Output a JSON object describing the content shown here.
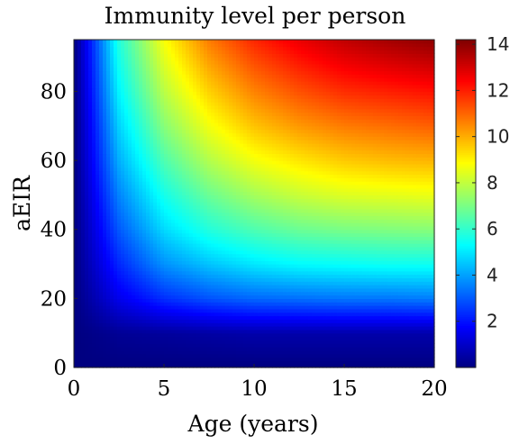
{
  "chart_data": {
    "type": "heatmap",
    "title": "Immunity level per person",
    "xlabel": "Age (years)",
    "ylabel": "aEIR",
    "xlim": [
      0,
      20
    ],
    "ylim": [
      0,
      95
    ],
    "x_ticks": [
      0,
      5,
      10,
      15,
      20
    ],
    "y_ticks": [
      0,
      20,
      40,
      60,
      80
    ],
    "colorbar": {
      "colormap": "jet",
      "range": [
        0,
        14.2
      ],
      "ticks": [
        2,
        4,
        6,
        8,
        10,
        12,
        14
      ]
    },
    "sampled_values": {
      "x": [
        0,
        2.5,
        5,
        7.5,
        10,
        12.5,
        15,
        17.5,
        20
      ],
      "y": [
        0,
        10,
        20,
        30,
        40,
        50,
        60,
        70,
        80,
        95
      ],
      "z": [
        [
          0.0,
          0.0,
          0.0,
          0.0,
          0.0,
          0.0,
          0.0,
          0.0,
          0.0
        ],
        [
          0.0,
          0.3,
          0.4,
          0.5,
          0.6,
          0.6,
          0.6,
          0.6,
          0.6
        ],
        [
          0.0,
          1.5,
          2.4,
          2.9,
          3.2,
          3.3,
          3.4,
          3.4,
          3.5
        ],
        [
          0.0,
          2.3,
          3.8,
          4.5,
          5.0,
          5.3,
          5.4,
          5.5,
          5.5
        ],
        [
          0.0,
          3.0,
          4.8,
          5.8,
          6.4,
          6.8,
          7.0,
          7.1,
          7.2
        ],
        [
          0.0,
          3.6,
          5.6,
          6.8,
          7.6,
          8.1,
          8.4,
          8.5,
          8.6
        ],
        [
          0.0,
          4.2,
          6.4,
          7.8,
          8.7,
          9.2,
          9.6,
          9.8,
          9.9
        ],
        [
          0.0,
          4.7,
          7.2,
          8.7,
          9.7,
          10.3,
          10.7,
          10.9,
          11.1
        ],
        [
          0.0,
          5.2,
          7.9,
          9.5,
          10.6,
          11.3,
          11.8,
          12.0,
          12.2
        ],
        [
          0.0,
          5.8,
          8.8,
          10.7,
          11.9,
          12.7,
          13.3,
          13.7,
          14.0
        ]
      ]
    }
  }
}
